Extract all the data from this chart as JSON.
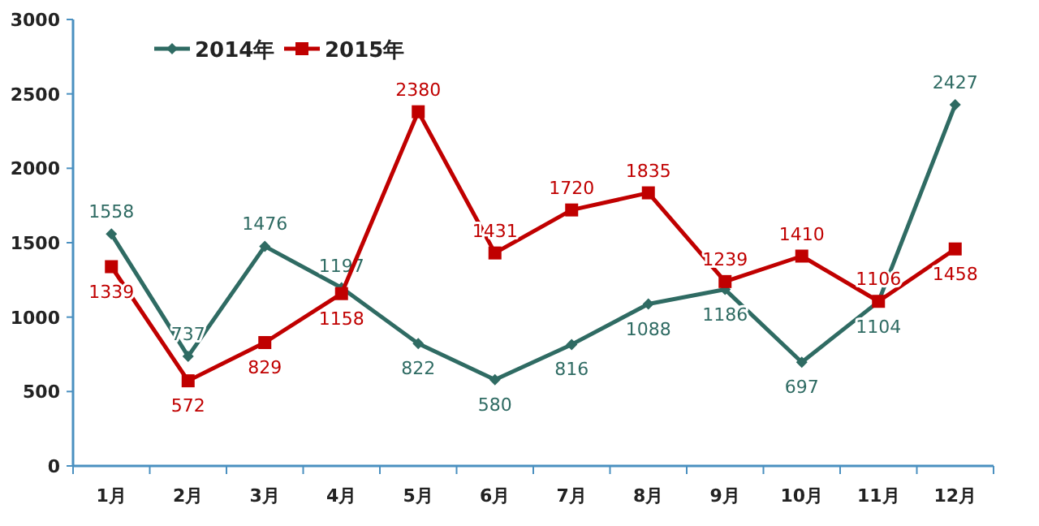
{
  "chart_data": {
    "type": "line",
    "categories": [
      "1月",
      "2月",
      "3月",
      "4月",
      "5月",
      "6月",
      "7月",
      "8月",
      "9月",
      "10月",
      "11月",
      "12月"
    ],
    "series": [
      {
        "name": "2014年",
        "color": "#2f6b63",
        "marker": "diamond",
        "values": [
          1558,
          737,
          1476,
          1197,
          822,
          580,
          816,
          1088,
          1186,
          697,
          1104,
          2427
        ]
      },
      {
        "name": "2015年",
        "color": "#c00000",
        "marker": "square",
        "values": [
          1339,
          572,
          829,
          1158,
          2380,
          1431,
          1720,
          1835,
          1239,
          1410,
          1106,
          1458
        ]
      }
    ],
    "ylim": [
      0,
      3000
    ],
    "yticks": [
      0,
      500,
      1000,
      1500,
      2000,
      2500,
      3000
    ],
    "grid": false,
    "legend": "top left",
    "data_labels": true,
    "line_style": "solid"
  }
}
